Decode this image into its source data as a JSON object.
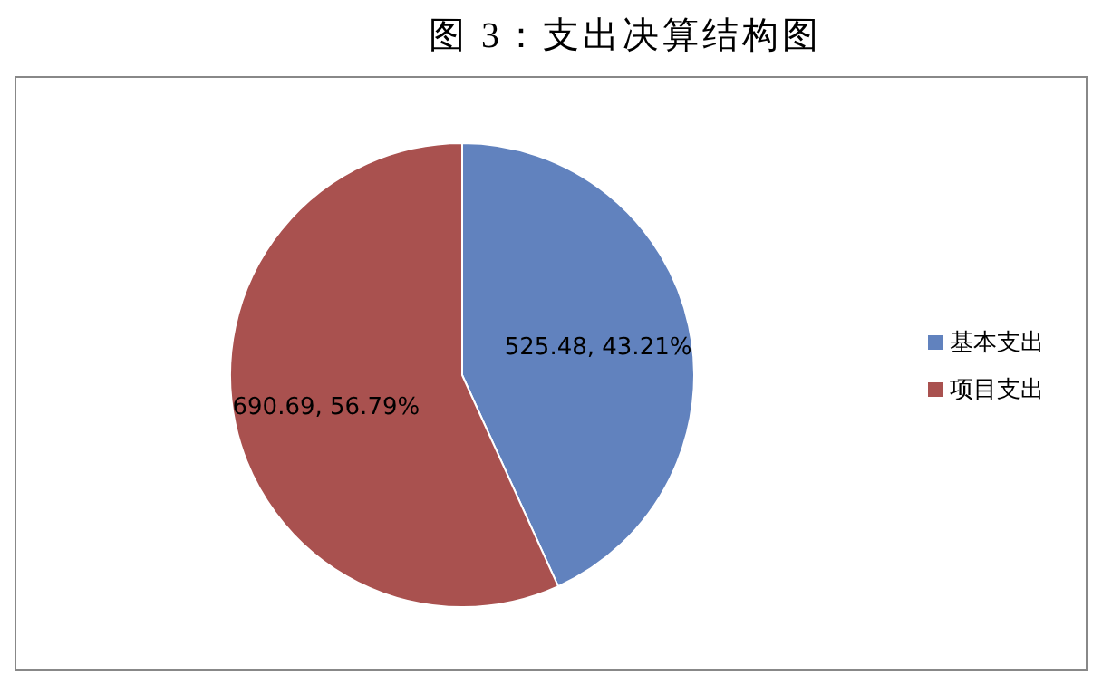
{
  "chart_data": {
    "type": "pie",
    "title": "图 3：支出决算结构图",
    "categories": [
      "基本支出",
      "项目支出"
    ],
    "values": [
      525.48,
      690.69
    ],
    "colors": [
      "#6182be",
      "#a9514f"
    ],
    "value_labels": [
      "525.48, 43.21%",
      "690.69, 56.79%"
    ],
    "legend": "right"
  }
}
